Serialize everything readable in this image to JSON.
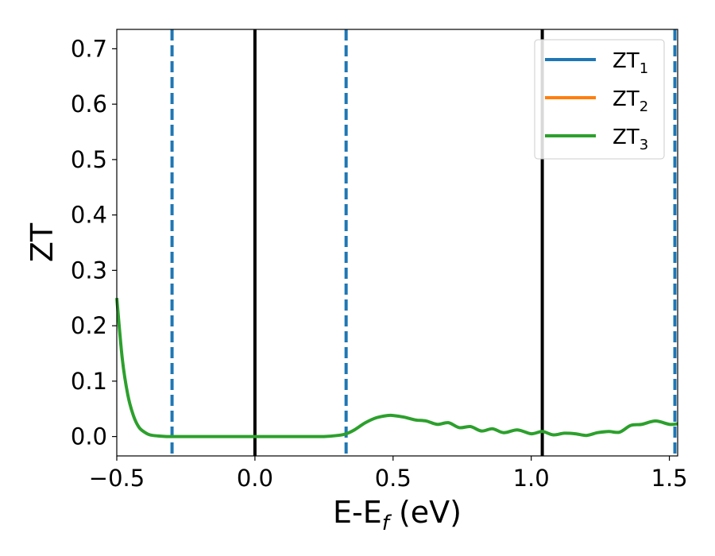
{
  "chart_data": {
    "type": "line",
    "xlabel": "E-E",
    "xlabel_sub": "f",
    "xlabel_unit": " (eV)",
    "ylabel": "ZT",
    "xlim": [
      -0.5,
      1.53
    ],
    "ylim": [
      -0.035,
      0.735
    ],
    "xticks": [
      -0.5,
      0.0,
      0.5,
      1.0,
      1.5
    ],
    "xtick_labels": [
      "−0.5",
      "0.0",
      "0.5",
      "1.0",
      "1.5"
    ],
    "yticks": [
      0.0,
      0.1,
      0.2,
      0.3,
      0.4,
      0.5,
      0.6,
      0.7
    ],
    "ytick_labels": [
      "0.0",
      "0.1",
      "0.2",
      "0.3",
      "0.4",
      "0.5",
      "0.6",
      "0.7"
    ],
    "grid": false,
    "legend_position": "top-right",
    "vlines_solid": [
      0.0,
      1.04
    ],
    "vlines_dashed": [
      -0.3,
      0.33,
      1.52
    ],
    "series": [
      {
        "name": "ZT",
        "sub": "1",
        "color": "#1f77b4",
        "x": [],
        "y": []
      },
      {
        "name": "ZT",
        "sub": "2",
        "color": "#ff7f0e",
        "x": [],
        "y": []
      },
      {
        "name": "ZT",
        "sub": "3",
        "color": "#2ca02c",
        "x": [
          -0.5,
          -0.48,
          -0.46,
          -0.44,
          -0.42,
          -0.4,
          -0.38,
          -0.35,
          -0.32,
          -0.3,
          -0.2,
          -0.1,
          0.0,
          0.1,
          0.2,
          0.25,
          0.3,
          0.33,
          0.36,
          0.4,
          0.44,
          0.48,
          0.5,
          0.54,
          0.58,
          0.62,
          0.66,
          0.7,
          0.74,
          0.78,
          0.82,
          0.86,
          0.9,
          0.95,
          1.0,
          1.04,
          1.08,
          1.12,
          1.16,
          1.2,
          1.24,
          1.28,
          1.32,
          1.36,
          1.4,
          1.45,
          1.5,
          1.53
        ],
        "y": [
          0.25,
          0.14,
          0.075,
          0.038,
          0.017,
          0.008,
          0.003,
          0.001,
          0.0,
          0.0,
          0.0,
          0.0,
          0.0,
          0.0,
          0.0,
          0.0,
          0.002,
          0.005,
          0.012,
          0.025,
          0.034,
          0.038,
          0.038,
          0.035,
          0.03,
          0.028,
          0.022,
          0.025,
          0.016,
          0.018,
          0.01,
          0.014,
          0.007,
          0.012,
          0.005,
          0.009,
          0.003,
          0.006,
          0.005,
          0.002,
          0.007,
          0.009,
          0.008,
          0.02,
          0.022,
          0.028,
          0.022,
          0.023
        ]
      }
    ]
  }
}
